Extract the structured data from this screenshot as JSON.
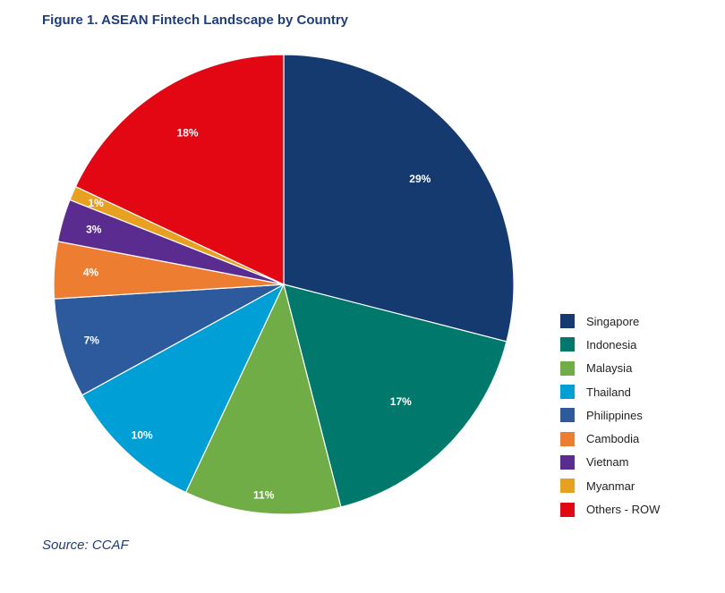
{
  "title": "Figure 1. ASEAN Fintech Landscape by Country",
  "source": "Source: CCAF",
  "chart_data": {
    "type": "pie",
    "title": "Figure 1. ASEAN Fintech Landscape by Country",
    "legend_position": "right",
    "categories": [
      "Singapore",
      "Indonesia",
      "Malaysia",
      "Thailand",
      "Philippines",
      "Cambodia",
      "Vietnam",
      "Myanmar",
      "Others - ROW"
    ],
    "values": [
      29,
      17,
      11,
      10,
      7,
      4,
      3,
      1,
      18
    ],
    "labels": [
      "29%",
      "17%",
      "11%",
      "10%",
      "7%",
      "4%",
      "3%",
      "1%",
      "18%"
    ],
    "colors": [
      "#153a70",
      "#00786c",
      "#70ad47",
      "#00a0d6",
      "#2c5a9c",
      "#ed7d31",
      "#5b2c8f",
      "#e8a020",
      "#e30613"
    ]
  }
}
